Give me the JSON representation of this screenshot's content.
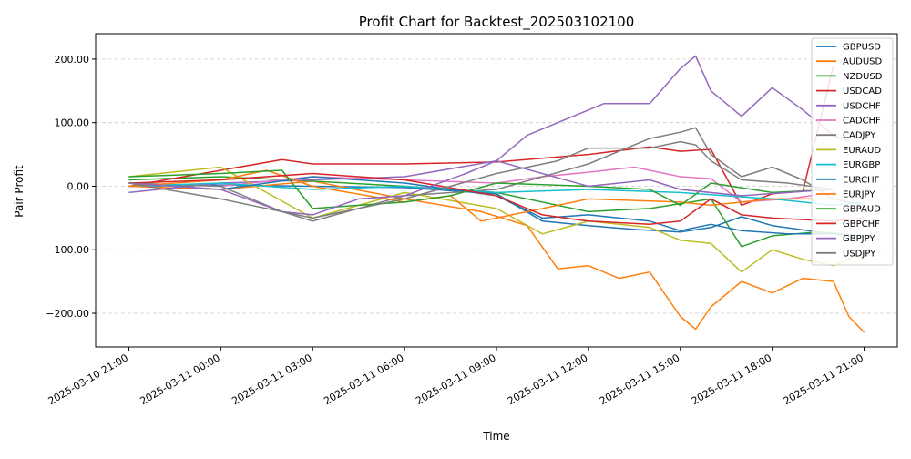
{
  "chart_data": {
    "type": "line",
    "title": "Profit Chart for Backtest_202503102100",
    "xlabel": "Time",
    "ylabel": "Pair Profit",
    "xlim": [
      "2025-03-10 19:55",
      "2025-03-11 22:05"
    ],
    "ylim": [
      -253,
      240
    ],
    "x_ticks": [
      "2025-03-10 21:00",
      "2025-03-11 00:00",
      "2025-03-11 03:00",
      "2025-03-11 06:00",
      "2025-03-11 09:00",
      "2025-03-11 12:00",
      "2025-03-11 15:00",
      "2025-03-11 18:00",
      "2025-03-11 21:00"
    ],
    "y_ticks": [
      -200,
      -100,
      0,
      100,
      200
    ],
    "y_tick_labels": [
      "−200.00",
      "−100.00",
      "0.00",
      "100.00",
      "200.00"
    ],
    "grid": "y-dashed",
    "legend": "top-right",
    "series": [
      {
        "name": "GBPUSD",
        "color": "#1f77b4",
        "points": [
          [
            "2025-03-10 21:00",
            0
          ],
          [
            "2025-03-11 00:00",
            2
          ],
          [
            "2025-03-11 03:00",
            0
          ],
          [
            "2025-03-11 06:00",
            -2
          ],
          [
            "2025-03-11 09:00",
            -12
          ],
          [
            "2025-03-11 10:30",
            -55
          ],
          [
            "2025-03-11 12:00",
            -62
          ],
          [
            "2025-03-11 13:30",
            -68
          ],
          [
            "2025-03-11 15:00",
            -72
          ],
          [
            "2025-03-11 16:00",
            -65
          ],
          [
            "2025-03-11 17:00",
            -48
          ],
          [
            "2025-03-11 18:00",
            -62
          ],
          [
            "2025-03-11 19:30",
            -72
          ],
          [
            "2025-03-11 20:30",
            -78
          ]
        ]
      },
      {
        "name": "AUDUSD",
        "color": "#ff7f0e",
        "points": [
          [
            "2025-03-10 21:00",
            0
          ],
          [
            "2025-03-11 00:00",
            -5
          ],
          [
            "2025-03-11 03:00",
            8
          ],
          [
            "2025-03-11 06:00",
            -20
          ],
          [
            "2025-03-11 08:30",
            -40
          ],
          [
            "2025-03-11 10:00",
            -62
          ],
          [
            "2025-03-11 11:00",
            -130
          ],
          [
            "2025-03-11 12:00",
            -125
          ],
          [
            "2025-03-11 13:00",
            -145
          ],
          [
            "2025-03-11 14:00",
            -135
          ],
          [
            "2025-03-11 15:00",
            -205
          ],
          [
            "2025-03-11 15:30",
            -225
          ],
          [
            "2025-03-11 16:00",
            -190
          ],
          [
            "2025-03-11 17:00",
            -150
          ],
          [
            "2025-03-11 18:00",
            -168
          ],
          [
            "2025-03-11 19:00",
            -145
          ],
          [
            "2025-03-11 20:00",
            -150
          ],
          [
            "2025-03-11 20:30",
            -205
          ],
          [
            "2025-03-11 21:00",
            -230
          ]
        ]
      },
      {
        "name": "NZDUSD",
        "color": "#2ca02c",
        "points": [
          [
            "2025-03-10 21:00",
            10
          ],
          [
            "2025-03-11 00:00",
            15
          ],
          [
            "2025-03-11 03:00",
            8
          ],
          [
            "2025-03-11 06:00",
            0
          ],
          [
            "2025-03-11 09:00",
            -10
          ],
          [
            "2025-03-11 12:00",
            -40
          ],
          [
            "2025-03-11 14:00",
            -35
          ],
          [
            "2025-03-11 16:00",
            -20
          ],
          [
            "2025-03-11 17:00",
            -95
          ],
          [
            "2025-03-11 18:00",
            -78
          ],
          [
            "2025-03-11 19:30",
            -72
          ],
          [
            "2025-03-11 21:00",
            -78
          ]
        ]
      },
      {
        "name": "USDCAD",
        "color": "#d62728",
        "points": [
          [
            "2025-03-10 21:00",
            0
          ],
          [
            "2025-03-11 00:00",
            25
          ],
          [
            "2025-03-11 02:00",
            42
          ],
          [
            "2025-03-11 03:00",
            35
          ],
          [
            "2025-03-11 06:00",
            35
          ],
          [
            "2025-03-11 09:00",
            38
          ],
          [
            "2025-03-11 12:00",
            50
          ],
          [
            "2025-03-11 14:00",
            62
          ],
          [
            "2025-03-11 15:00",
            55
          ],
          [
            "2025-03-11 16:00",
            58
          ],
          [
            "2025-03-11 17:00",
            -30
          ],
          [
            "2025-03-11 18:00",
            -12
          ],
          [
            "2025-03-11 19:00",
            -8
          ],
          [
            "2025-03-11 20:00",
            190
          ]
        ]
      },
      {
        "name": "USDCHF",
        "color": "#9467bd",
        "points": [
          [
            "2025-03-10 21:00",
            -10
          ],
          [
            "2025-03-11 00:00",
            5
          ],
          [
            "2025-03-11 03:00",
            10
          ],
          [
            "2025-03-11 06:00",
            15
          ],
          [
            "2025-03-11 09:00",
            40
          ],
          [
            "2025-03-11 10:00",
            80
          ],
          [
            "2025-03-11 11:30",
            110
          ],
          [
            "2025-03-11 12:30",
            130
          ],
          [
            "2025-03-11 14:00",
            130
          ],
          [
            "2025-03-11 15:00",
            185
          ],
          [
            "2025-03-11 15:30",
            205
          ],
          [
            "2025-03-11 16:00",
            150
          ],
          [
            "2025-03-11 17:00",
            110
          ],
          [
            "2025-03-11 18:00",
            155
          ],
          [
            "2025-03-11 19:00",
            120
          ],
          [
            "2025-03-11 20:00",
            80
          ],
          [
            "2025-03-11 20:30",
            70
          ]
        ]
      },
      {
        "name": "CADCHF",
        "color": "#e377c2",
        "points": [
          [
            "2025-03-10 21:00",
            5
          ],
          [
            "2025-03-11 00:00",
            0
          ],
          [
            "2025-03-11 03:00",
            15
          ],
          [
            "2025-03-11 06:00",
            10
          ],
          [
            "2025-03-11 09:00",
            5
          ],
          [
            "2025-03-11 10:30",
            15
          ],
          [
            "2025-03-11 12:00",
            22
          ],
          [
            "2025-03-11 13:30",
            30
          ],
          [
            "2025-03-11 15:00",
            15
          ],
          [
            "2025-03-11 16:00",
            12
          ],
          [
            "2025-03-11 17:00",
            -25
          ],
          [
            "2025-03-11 18:30",
            -20
          ],
          [
            "2025-03-11 20:00",
            -10
          ]
        ]
      },
      {
        "name": "CADJPY",
        "color": "#7f7f7f",
        "points": [
          [
            "2025-03-10 21:00",
            5
          ],
          [
            "2025-03-11 00:00",
            0
          ],
          [
            "2025-03-11 02:00",
            -40
          ],
          [
            "2025-03-11 03:00",
            -55
          ],
          [
            "2025-03-11 06:00",
            -15
          ],
          [
            "2025-03-11 09:00",
            -5
          ],
          [
            "2025-03-11 12:00",
            35
          ],
          [
            "2025-03-11 14:00",
            75
          ],
          [
            "2025-03-11 15:00",
            85
          ],
          [
            "2025-03-11 15:30",
            92
          ],
          [
            "2025-03-11 16:00",
            50
          ],
          [
            "2025-03-11 17:00",
            15
          ],
          [
            "2025-03-11 18:00",
            30
          ],
          [
            "2025-03-11 19:00",
            10
          ],
          [
            "2025-03-11 20:00",
            -20
          ],
          [
            "2025-03-11 21:00",
            -30
          ]
        ]
      },
      {
        "name": "EURAUD",
        "color": "#bcbd22",
        "points": [
          [
            "2025-03-10 21:00",
            15
          ],
          [
            "2025-03-11 00:00",
            30
          ],
          [
            "2025-03-11 03:00",
            -50
          ],
          [
            "2025-03-11 06:00",
            -10
          ],
          [
            "2025-03-11 09:00",
            -35
          ],
          [
            "2025-03-11 10:30",
            -75
          ],
          [
            "2025-03-11 12:00",
            -55
          ],
          [
            "2025-03-11 14:00",
            -65
          ],
          [
            "2025-03-11 15:00",
            -85
          ],
          [
            "2025-03-11 16:00",
            -90
          ],
          [
            "2025-03-11 17:00",
            -135
          ],
          [
            "2025-03-11 18:00",
            -100
          ],
          [
            "2025-03-11 19:00",
            -115
          ],
          [
            "2025-03-11 20:00",
            -125
          ],
          [
            "2025-03-11 21:00",
            -105
          ]
        ]
      },
      {
        "name": "EURGBP",
        "color": "#17becf",
        "points": [
          [
            "2025-03-10 21:00",
            0
          ],
          [
            "2025-03-11 00:00",
            5
          ],
          [
            "2025-03-11 03:00",
            -5
          ],
          [
            "2025-03-11 06:00",
            0
          ],
          [
            "2025-03-11 09:00",
            -10
          ],
          [
            "2025-03-11 12:00",
            -5
          ],
          [
            "2025-03-11 15:00",
            -10
          ],
          [
            "2025-03-11 18:00",
            -20
          ],
          [
            "2025-03-11 20:00",
            -30
          ],
          [
            "2025-03-11 21:00",
            -25
          ]
        ]
      },
      {
        "name": "EURCHF",
        "color": "#1f77b4",
        "points": [
          [
            "2025-03-10 21:00",
            5
          ],
          [
            "2025-03-11 00:00",
            -5
          ],
          [
            "2025-03-11 03:00",
            15
          ],
          [
            "2025-03-11 06:00",
            5
          ],
          [
            "2025-03-11 09:00",
            -15
          ],
          [
            "2025-03-11 10:30",
            -50
          ],
          [
            "2025-03-11 12:00",
            -45
          ],
          [
            "2025-03-11 14:00",
            -55
          ],
          [
            "2025-03-11 15:00",
            -70
          ],
          [
            "2025-03-11 16:00",
            -60
          ],
          [
            "2025-03-11 17:00",
            -70
          ],
          [
            "2025-03-11 18:30",
            -75
          ],
          [
            "2025-03-11 20:00",
            -75
          ]
        ]
      },
      {
        "name": "EURJPY",
        "color": "#ff7f0e",
        "points": [
          [
            "2025-03-10 21:00",
            0
          ],
          [
            "2025-03-11 00:00",
            10
          ],
          [
            "2025-03-11 01:30",
            25
          ],
          [
            "2025-03-11 03:00",
            0
          ],
          [
            "2025-03-11 06:00",
            -25
          ],
          [
            "2025-03-11 07:30",
            -15
          ],
          [
            "2025-03-11 08:30",
            -55
          ],
          [
            "2025-03-11 09:00",
            -50
          ],
          [
            "2025-03-11 12:00",
            -20
          ],
          [
            "2025-03-11 15:00",
            -25
          ],
          [
            "2025-03-11 16:00",
            -30
          ],
          [
            "2025-03-11 18:00",
            -20
          ],
          [
            "2025-03-11 20:00",
            -20
          ]
        ]
      },
      {
        "name": "GBPAUD",
        "color": "#2ca02c",
        "points": [
          [
            "2025-03-10 21:00",
            15
          ],
          [
            "2025-03-11 00:00",
            20
          ],
          [
            "2025-03-11 02:00",
            25
          ],
          [
            "2025-03-11 03:00",
            -35
          ],
          [
            "2025-03-11 06:00",
            -25
          ],
          [
            "2025-03-11 07:30",
            -15
          ],
          [
            "2025-03-11 09:00",
            5
          ],
          [
            "2025-03-11 12:00",
            0
          ],
          [
            "2025-03-11 14:00",
            -5
          ],
          [
            "2025-03-11 15:00",
            -30
          ],
          [
            "2025-03-11 16:00",
            5
          ],
          [
            "2025-03-11 18:00",
            -10
          ],
          [
            "2025-03-11 20:00",
            -5
          ]
        ]
      },
      {
        "name": "GBPCHF",
        "color": "#d62728",
        "points": [
          [
            "2025-03-10 21:00",
            5
          ],
          [
            "2025-03-11 00:00",
            10
          ],
          [
            "2025-03-11 03:00",
            20
          ],
          [
            "2025-03-11 06:00",
            10
          ],
          [
            "2025-03-11 09:00",
            -15
          ],
          [
            "2025-03-11 10:30",
            -45
          ],
          [
            "2025-03-11 12:00",
            -55
          ],
          [
            "2025-03-11 14:00",
            -60
          ],
          [
            "2025-03-11 15:00",
            -55
          ],
          [
            "2025-03-11 16:00",
            -20
          ],
          [
            "2025-03-11 17:00",
            -45
          ],
          [
            "2025-03-11 18:00",
            -50
          ],
          [
            "2025-03-11 20:00",
            -55
          ],
          [
            "2025-03-11 21:00",
            -50
          ]
        ]
      },
      {
        "name": "GBPJPY",
        "color": "#9467bd",
        "points": [
          [
            "2025-03-10 21:00",
            5
          ],
          [
            "2025-03-11 00:00",
            -5
          ],
          [
            "2025-03-11 02:00",
            -40
          ],
          [
            "2025-03-11 03:00",
            -45
          ],
          [
            "2025-03-11 04:30",
            -20
          ],
          [
            "2025-03-11 06:00",
            -15
          ],
          [
            "2025-03-11 08:00",
            20
          ],
          [
            "2025-03-11 09:00",
            40
          ],
          [
            "2025-03-11 12:00",
            0
          ],
          [
            "2025-03-11 14:00",
            10
          ],
          [
            "2025-03-11 15:00",
            -5
          ],
          [
            "2025-03-11 17:00",
            -15
          ],
          [
            "2025-03-11 18:30",
            -10
          ],
          [
            "2025-03-11 20:00",
            -5
          ]
        ]
      },
      {
        "name": "USDJPY",
        "color": "#7f7f7f",
        "points": [
          [
            "2025-03-10 21:00",
            5
          ],
          [
            "2025-03-11 00:00",
            -20
          ],
          [
            "2025-03-11 03:00",
            -50
          ],
          [
            "2025-03-11 06:00",
            -20
          ],
          [
            "2025-03-11 09:00",
            20
          ],
          [
            "2025-03-11 11:00",
            40
          ],
          [
            "2025-03-11 12:00",
            60
          ],
          [
            "2025-03-11 14:00",
            60
          ],
          [
            "2025-03-11 15:00",
            70
          ],
          [
            "2025-03-11 15:30",
            65
          ],
          [
            "2025-03-11 16:00",
            40
          ],
          [
            "2025-03-11 17:00",
            10
          ],
          [
            "2025-03-11 18:30",
            5
          ],
          [
            "2025-03-11 20:00",
            -5
          ]
        ]
      }
    ]
  }
}
